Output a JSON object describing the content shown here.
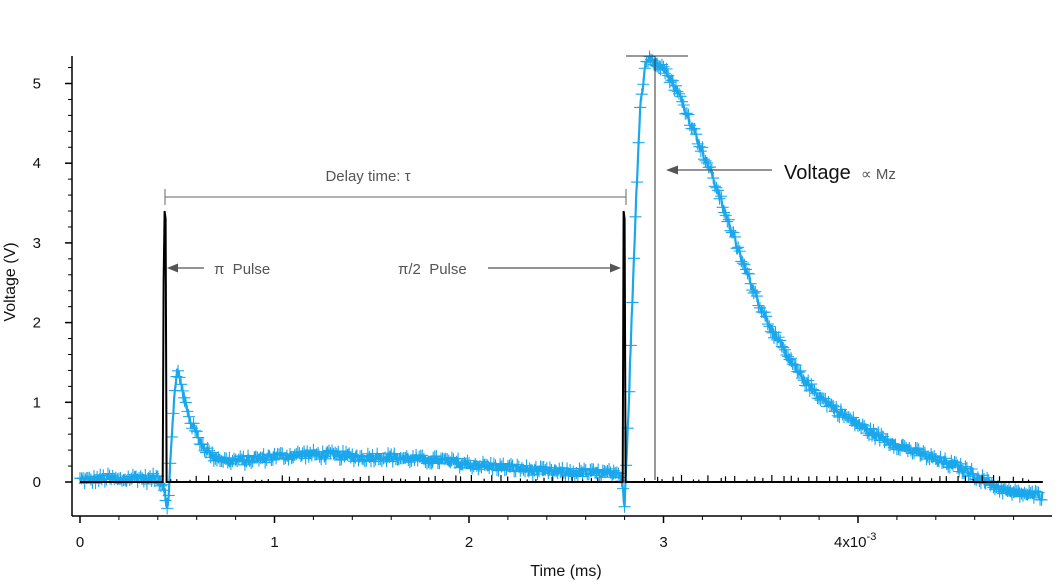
{
  "chart_data": {
    "type": "line",
    "xlabel": "Time (ms)",
    "ylabel": "Voltage (V)",
    "xlim": [
      -0.05,
      4.95
    ],
    "ylim": [
      -0.42,
      5.35
    ],
    "x_ticks": [
      0,
      1,
      2,
      3,
      4
    ],
    "x_tick_labels": [
      "0",
      "1",
      "2",
      "3",
      "4x10"
    ],
    "x_tick_exponent": "-3",
    "y_ticks": [
      0,
      1,
      2,
      3,
      4,
      5
    ],
    "y_tick_labels": [
      "0",
      "1",
      "2",
      "3",
      "4",
      "5"
    ],
    "grid": false,
    "legend": "none",
    "series": [
      {
        "color": "#1aa7ec",
        "marker": "plus",
        "points": [
          [
            0.0,
            0.03
          ],
          [
            0.05,
            0.02
          ],
          [
            0.1,
            0.04
          ],
          [
            0.15,
            0.05
          ],
          [
            0.2,
            0.02
          ],
          [
            0.25,
            0.05
          ],
          [
            0.3,
            0.06
          ],
          [
            0.35,
            0.03
          ],
          [
            0.4,
            0.06
          ],
          [
            0.43,
            -0.05
          ],
          [
            0.45,
            -0.35
          ],
          [
            0.47,
            0.45
          ],
          [
            0.49,
            1.25
          ],
          [
            0.5,
            1.42
          ],
          [
            0.53,
            1.1
          ],
          [
            0.57,
            0.75
          ],
          [
            0.62,
            0.5
          ],
          [
            0.68,
            0.32
          ],
          [
            0.75,
            0.27
          ],
          [
            0.85,
            0.27
          ],
          [
            0.95,
            0.3
          ],
          [
            1.05,
            0.33
          ],
          [
            1.15,
            0.35
          ],
          [
            1.25,
            0.34
          ],
          [
            1.35,
            0.33
          ],
          [
            1.45,
            0.31
          ],
          [
            1.55,
            0.32
          ],
          [
            1.65,
            0.3
          ],
          [
            1.75,
            0.28
          ],
          [
            1.85,
            0.27
          ],
          [
            1.95,
            0.24
          ],
          [
            2.05,
            0.21
          ],
          [
            2.15,
            0.19
          ],
          [
            2.25,
            0.17
          ],
          [
            2.35,
            0.14
          ],
          [
            2.45,
            0.12
          ],
          [
            2.55,
            0.12
          ],
          [
            2.65,
            0.11
          ],
          [
            2.72,
            0.11
          ],
          [
            2.78,
            0.05
          ],
          [
            2.8,
            -0.25
          ],
          [
            2.82,
            0.9
          ],
          [
            2.84,
            2.3
          ],
          [
            2.86,
            3.6
          ],
          [
            2.88,
            4.7
          ],
          [
            2.91,
            5.3
          ],
          [
            2.96,
            5.28
          ],
          [
            3.0,
            5.2
          ],
          [
            3.05,
            5.0
          ],
          [
            3.1,
            4.75
          ],
          [
            3.15,
            4.45
          ],
          [
            3.2,
            4.15
          ],
          [
            3.25,
            3.85
          ],
          [
            3.3,
            3.5
          ],
          [
            3.35,
            3.15
          ],
          [
            3.4,
            2.8
          ],
          [
            3.45,
            2.5
          ],
          [
            3.5,
            2.2
          ],
          [
            3.55,
            1.95
          ],
          [
            3.6,
            1.72
          ],
          [
            3.65,
            1.52
          ],
          [
            3.7,
            1.35
          ],
          [
            3.75,
            1.2
          ],
          [
            3.8,
            1.08
          ],
          [
            3.85,
            0.98
          ],
          [
            3.9,
            0.88
          ],
          [
            3.95,
            0.8
          ],
          [
            4.0,
            0.72
          ],
          [
            4.05,
            0.64
          ],
          [
            4.1,
            0.58
          ],
          [
            4.15,
            0.52
          ],
          [
            4.2,
            0.47
          ],
          [
            4.25,
            0.42
          ],
          [
            4.3,
            0.37
          ],
          [
            4.35,
            0.33
          ],
          [
            4.4,
            0.28
          ],
          [
            4.45,
            0.24
          ],
          [
            4.5,
            0.2
          ],
          [
            4.55,
            0.15
          ],
          [
            4.6,
            0.09
          ],
          [
            4.65,
            0.02
          ],
          [
            4.7,
            -0.05
          ],
          [
            4.75,
            -0.1
          ],
          [
            4.8,
            -0.14
          ],
          [
            4.85,
            -0.15
          ],
          [
            4.9,
            -0.16
          ],
          [
            4.95,
            -0.17
          ]
        ]
      },
      {
        "color": "#000000",
        "marker": "none",
        "points": [
          [
            0.0,
            0.0
          ],
          [
            0.425,
            0.0
          ],
          [
            0.43,
            2.5
          ],
          [
            0.435,
            3.4
          ],
          [
            0.44,
            3.3
          ],
          [
            0.445,
            0.0
          ],
          [
            2.79,
            0.0
          ],
          [
            2.795,
            3.4
          ],
          [
            2.8,
            3.3
          ],
          [
            2.805,
            0.0
          ],
          [
            4.95,
            0.0
          ]
        ]
      }
    ],
    "annotations": {
      "delay_label": "Delay time: τ",
      "pi_pulse_label": "π  Pulse",
      "pi2_pulse_label": "π/2  Pulse",
      "voltage_label": "Voltage",
      "proportional_label": "∝ Mz"
    }
  }
}
